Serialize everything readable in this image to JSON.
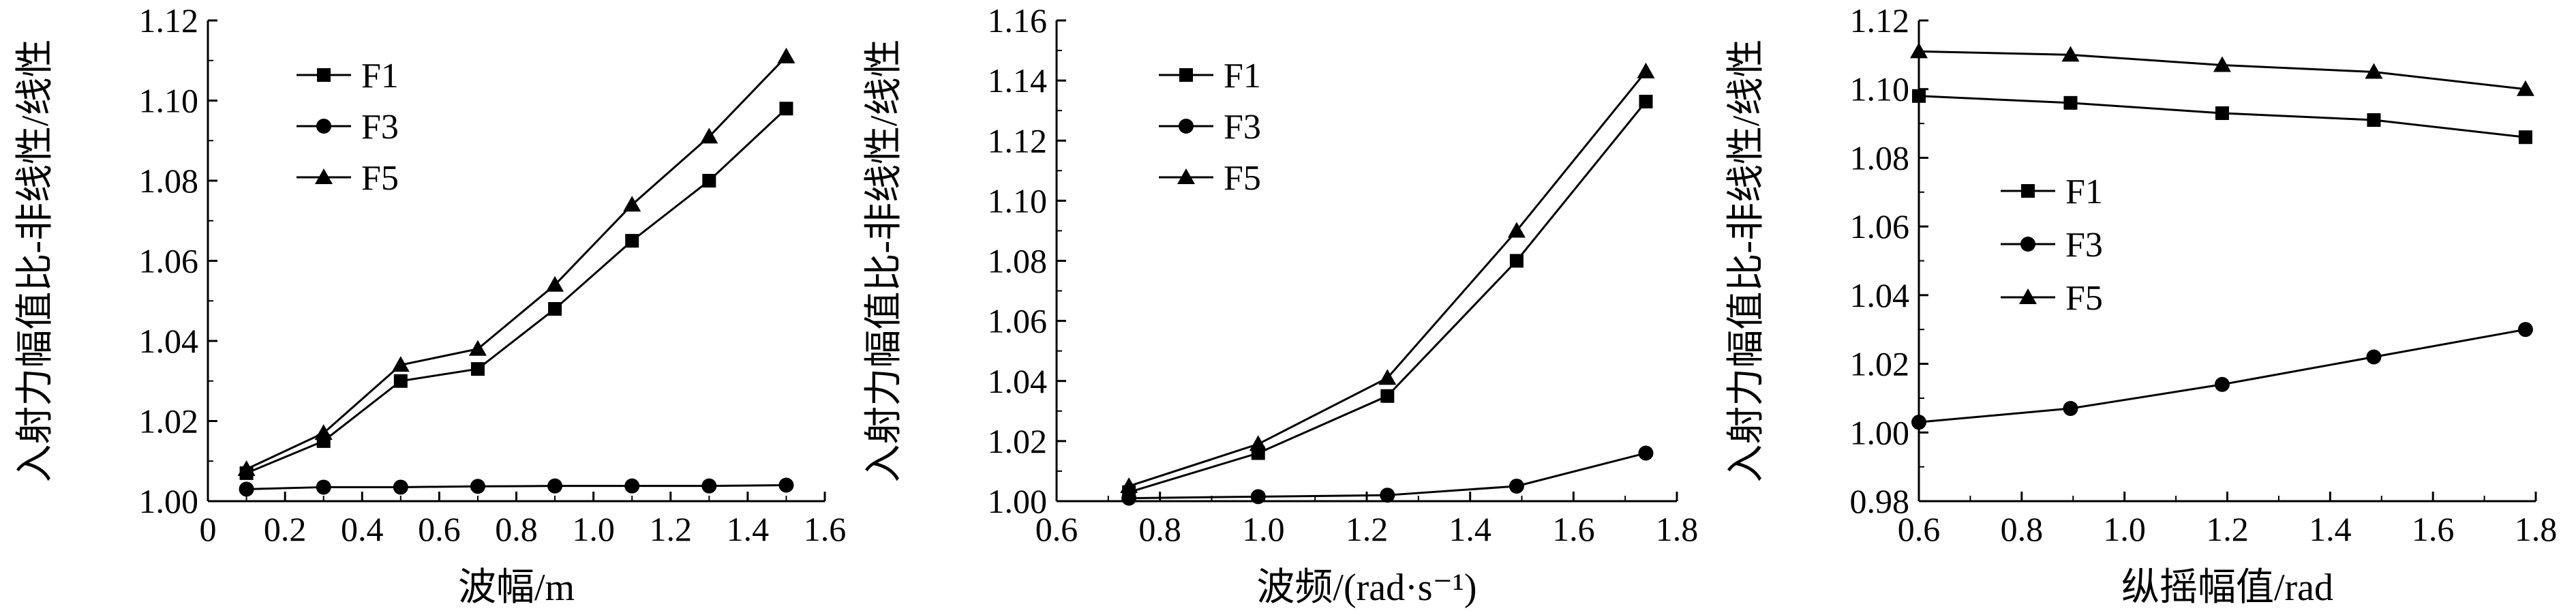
{
  "chart_data": [
    {
      "type": "line",
      "xlabel": "波幅/m",
      "ylabel": "入射力幅值比-非线性/线性",
      "xlim": [
        0,
        1.6
      ],
      "ylim": [
        1.0,
        1.12
      ],
      "xticks": [
        "0",
        "0.2",
        "0.4",
        "0.6",
        "0.8",
        "1.0",
        "1.2",
        "1.4",
        "1.6"
      ],
      "yticks": [
        "1.00",
        "1.02",
        "1.04",
        "1.06",
        "1.08",
        "1.10",
        "1.12"
      ],
      "legend": "top-left",
      "grid": false,
      "x": [
        0.1,
        0.3,
        0.5,
        0.7,
        0.9,
        1.1,
        1.3,
        1.5
      ],
      "series": [
        {
          "name": "F1",
          "marker": "square",
          "values": [
            1.007,
            1.015,
            1.03,
            1.033,
            1.048,
            1.065,
            1.08,
            1.098
          ]
        },
        {
          "name": "F3",
          "marker": "circle",
          "values": [
            1.003,
            1.0035,
            1.0035,
            1.0037,
            1.0038,
            1.0038,
            1.0038,
            1.004
          ]
        },
        {
          "name": "F5",
          "marker": "triangle",
          "values": [
            1.008,
            1.017,
            1.034,
            1.038,
            1.054,
            1.074,
            1.091,
            1.111
          ]
        }
      ]
    },
    {
      "type": "line",
      "xlabel": "波频/(rad·s⁻¹)",
      "ylabel": "入射力幅值比-非线性/线性",
      "xlim": [
        0.6,
        1.8
      ],
      "ylim": [
        1.0,
        1.16
      ],
      "xticks": [
        "0.6",
        "0.8",
        "1.0",
        "1.2",
        "1.4",
        "1.6",
        "1.8"
      ],
      "yticks": [
        "1.00",
        "1.02",
        "1.04",
        "1.06",
        "1.08",
        "1.10",
        "1.12",
        "1.14",
        "1.16"
      ],
      "legend": "top-left",
      "grid": false,
      "x": [
        0.74,
        0.99,
        1.24,
        1.49,
        1.74
      ],
      "series": [
        {
          "name": "F1",
          "marker": "square",
          "values": [
            1.003,
            1.016,
            1.035,
            1.08,
            1.133
          ]
        },
        {
          "name": "F3",
          "marker": "circle",
          "values": [
            1.001,
            1.0015,
            1.002,
            1.005,
            1.016
          ]
        },
        {
          "name": "F5",
          "marker": "triangle",
          "values": [
            1.005,
            1.019,
            1.041,
            1.09,
            1.143
          ]
        }
      ]
    },
    {
      "type": "line",
      "xlabel": "纵摇幅值/rad",
      "ylabel": "入射力幅值比-非线性/线性",
      "xlim": [
        0.6,
        1.8
      ],
      "ylim": [
        0.98,
        1.12
      ],
      "xticks": [
        "0.6",
        "0.8",
        "1.0",
        "1.2",
        "1.4",
        "1.6",
        "1.8"
      ],
      "yticks": [
        "0.98",
        "1.00",
        "1.02",
        "1.04",
        "1.06",
        "1.08",
        "1.10",
        "1.12"
      ],
      "legend": "center-left",
      "grid": false,
      "x": [
        0.6,
        0.895,
        1.19,
        1.485,
        1.78
      ],
      "series": [
        {
          "name": "F1",
          "marker": "square",
          "values": [
            1.098,
            1.096,
            1.093,
            1.091,
            1.086
          ]
        },
        {
          "name": "F3",
          "marker": "circle",
          "values": [
            1.003,
            1.007,
            1.014,
            1.022,
            1.03
          ]
        },
        {
          "name": "F5",
          "marker": "triangle",
          "values": [
            1.111,
            1.11,
            1.107,
            1.105,
            1.1
          ]
        }
      ]
    }
  ]
}
